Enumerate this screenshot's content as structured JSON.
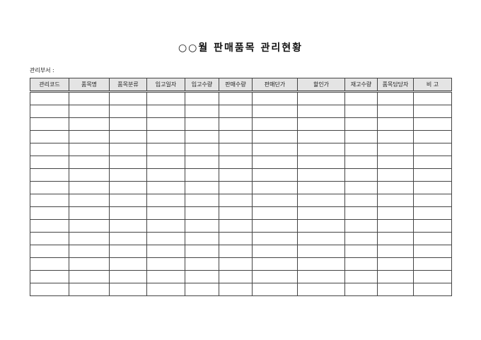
{
  "title": "○○월 판매품목 관리현황",
  "department_label": "관리부서 :",
  "table": {
    "headers": [
      "관리코드",
      "품목명",
      "품목분류",
      "입고일자",
      "입고수량",
      "판매수량",
      "판매단가",
      "할인가",
      "재고수량",
      "품목담당자",
      "비 고"
    ],
    "row_count": 16
  }
}
